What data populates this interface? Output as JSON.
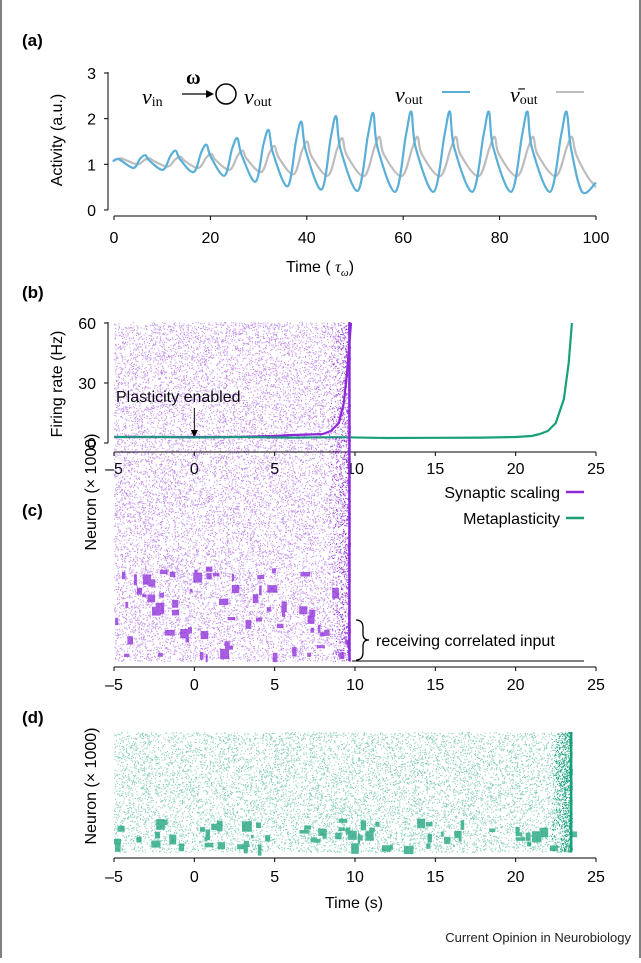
{
  "credit": "Current Opinion in Neurobiology",
  "chart_data": [
    {
      "panel": "(a)",
      "type": "line",
      "xlabel": "Time",
      "xlabel_unit_symbol": "τ",
      "xlabel_unit_subscript": "ω",
      "ylabel": "Activity (a.u.)",
      "xlim": [
        0,
        100
      ],
      "ylim": [
        0,
        3
      ],
      "xticks": [
        0,
        20,
        40,
        60,
        80,
        100
      ],
      "yticks": [
        0,
        1,
        2,
        3
      ],
      "inset": {
        "input_symbol": "ν",
        "input_sub": "in",
        "weight": "ω",
        "output_symbol": "ν",
        "output_sub": "out"
      },
      "series": [
        {
          "name_symbol": "ν",
          "name_sub": "out",
          "color": "#5aafd8",
          "peak_times": [
            0.8,
            6.5,
            12.8,
            19.2,
            25.6,
            32.1,
            38.9,
            46.1,
            53.8,
            61.7,
            69.7,
            77.8,
            85.8,
            93.9
          ],
          "peak_values": [
            1.12,
            1.2,
            1.3,
            1.43,
            1.57,
            1.75,
            1.93,
            2.05,
            2.12,
            2.15,
            2.15,
            2.15,
            2.15,
            2.15
          ],
          "trough_values": [
            1.0,
            0.92,
            0.88,
            0.83,
            0.75,
            0.62,
            0.52,
            0.45,
            0.42,
            0.4,
            0.4,
            0.4,
            0.4,
            0.4
          ],
          "end_value": 0.6
        },
        {
          "name_symbol": "ν̄",
          "name_sub": "out",
          "color": "#bdbdbd",
          "peak_times": [
            1.5,
            7.4,
            13.8,
            20.2,
            26.7,
            33.3,
            40.1,
            47.4,
            55.1,
            63.0,
            71.0,
            79.0,
            87.0,
            95.0
          ],
          "peak_values": [
            1.13,
            1.13,
            1.17,
            1.23,
            1.3,
            1.4,
            1.5,
            1.57,
            1.6,
            1.6,
            1.6,
            1.6,
            1.6,
            1.6
          ],
          "trough_values": [
            1.05,
            1.0,
            0.95,
            0.92,
            0.88,
            0.83,
            0.78,
            0.75,
            0.74,
            0.74,
            0.74,
            0.74,
            0.74,
            0.74
          ],
          "end_value": 0.5
        }
      ]
    },
    {
      "panel": "(b)",
      "type": "line",
      "xlabel": "",
      "ylabel": "Firing rate (Hz)",
      "xlim": [
        -5,
        25
      ],
      "ylim": [
        0,
        60
      ],
      "xticks": [
        "–5",
        "0",
        "5",
        "10",
        "15",
        "20",
        "25"
      ],
      "xtick_values": [
        -5,
        0,
        5,
        10,
        15,
        20,
        25
      ],
      "yticks": [
        0,
        30,
        60
      ],
      "annotation": {
        "text": "Plasticity enabled",
        "x": 0
      },
      "legend": {
        "placement": "below-right"
      },
      "series": [
        {
          "name": "Synaptic scaling",
          "color": "#8b2ad8",
          "x": [
            -5,
            -3,
            -1,
            0,
            1,
            2,
            3,
            4,
            5,
            6,
            7,
            8,
            8.5,
            9,
            9.3,
            9.5,
            9.65,
            9.75
          ],
          "y": [
            3,
            3,
            3,
            3,
            3,
            3,
            3.1,
            3.3,
            3.5,
            4,
            4.2,
            4.5,
            6,
            10,
            20,
            35,
            50,
            60
          ]
        },
        {
          "name": "Metaplasticity",
          "color": "#18a07a",
          "x": [
            -5,
            -2,
            0,
            3,
            6,
            9,
            12,
            15,
            18,
            20,
            21,
            21.5,
            22,
            22.5,
            23,
            23.3,
            23.5
          ],
          "y": [
            3,
            3,
            2.8,
            3,
            2.7,
            2.9,
            2.5,
            2.6,
            2.7,
            3,
            3.5,
            4.5,
            6,
            10,
            22,
            40,
            60
          ]
        }
      ]
    },
    {
      "panel": "(c)",
      "type": "scatter",
      "xlabel": "",
      "ylabel": "Neuron (× 1000)",
      "xlim": [
        -5,
        25
      ],
      "xticks": [
        "–5",
        "0",
        "5",
        "10",
        "15",
        "20",
        "25"
      ],
      "xtick_values": [
        -5,
        0,
        5,
        10,
        15,
        20,
        25
      ],
      "color": "#8b2ad8",
      "raster_end": 9.7,
      "annotation": "receiving correlated input"
    },
    {
      "panel": "(d)",
      "type": "scatter",
      "xlabel": "Time (s)",
      "ylabel": "Neuron (× 1000)",
      "xlim": [
        -5,
        25
      ],
      "xticks": [
        "–5",
        "0",
        "5",
        "10",
        "15",
        "20",
        "25"
      ],
      "xtick_values": [
        -5,
        0,
        5,
        10,
        15,
        20,
        25
      ],
      "color": "#18a07a",
      "raster_end": 23.5
    }
  ]
}
